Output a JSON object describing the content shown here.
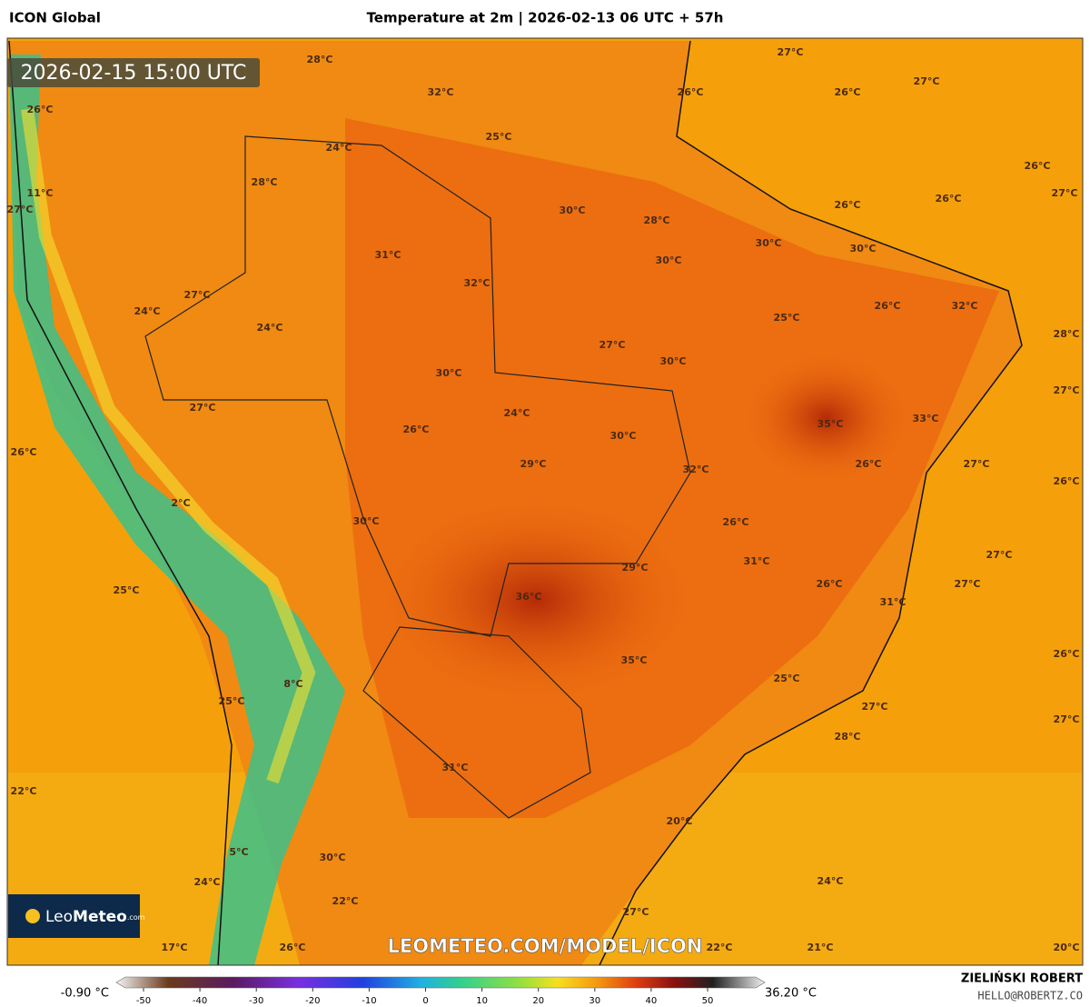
{
  "header": {
    "model": "ICON Global",
    "title": "Temperature at 2m | 2026-02-13 06 UTC + 57h"
  },
  "valid_time": "2026-02-15 15:00 UTC",
  "map_labels": [
    "28°C",
    "32°C",
    "27°C",
    "27°C",
    "26°C",
    "26°C",
    "26°C",
    "24°C",
    "25°C",
    "26°C",
    "27°C",
    "28°C",
    "30°C",
    "28°C",
    "26°C",
    "26°C",
    "27°C",
    "11°C",
    "30°C",
    "30°C",
    "31°C",
    "30°C",
    "32°C",
    "27°C",
    "24°C",
    "25°C",
    "26°C",
    "32°C",
    "28°C",
    "24°C",
    "27°C",
    "30°C",
    "30°C",
    "27°C",
    "27°C",
    "24°C",
    "35°C",
    "33°C",
    "26°C",
    "30°C",
    "26°C",
    "29°C",
    "32°C",
    "26°C",
    "27°C",
    "26°C",
    "2°C",
    "30°C",
    "26°C",
    "27°C",
    "31°C",
    "29°C",
    "26°C",
    "27°C",
    "25°C",
    "36°C",
    "31°C",
    "26°C",
    "35°C",
    "25°C",
    "8°C",
    "25°C",
    "27°C",
    "27°C",
    "28°C",
    "31°C",
    "22°C",
    "20°C",
    "5°C",
    "30°C",
    "24°C",
    "24°C",
    "22°C",
    "27°C",
    "17°C",
    "26°C",
    "22°C",
    "21°C",
    "20°C"
  ],
  "logo": {
    "name_a": "Leo",
    "name_b": "Meteo",
    "suffix": ".com"
  },
  "watermark": "LEOMETEO.COM/MODEL/ICON",
  "colorbar": {
    "min_label": "-0.90 °C",
    "max_label": "36.20 °C",
    "ticks": [
      -50,
      -40,
      -30,
      -20,
      -10,
      0,
      10,
      20,
      30,
      40,
      50
    ],
    "range": [
      -50,
      50
    ]
  },
  "author": {
    "name": "ZIELIŃSKI ROBERT",
    "email": "HELLO@ROBERTZ.CO"
  }
}
